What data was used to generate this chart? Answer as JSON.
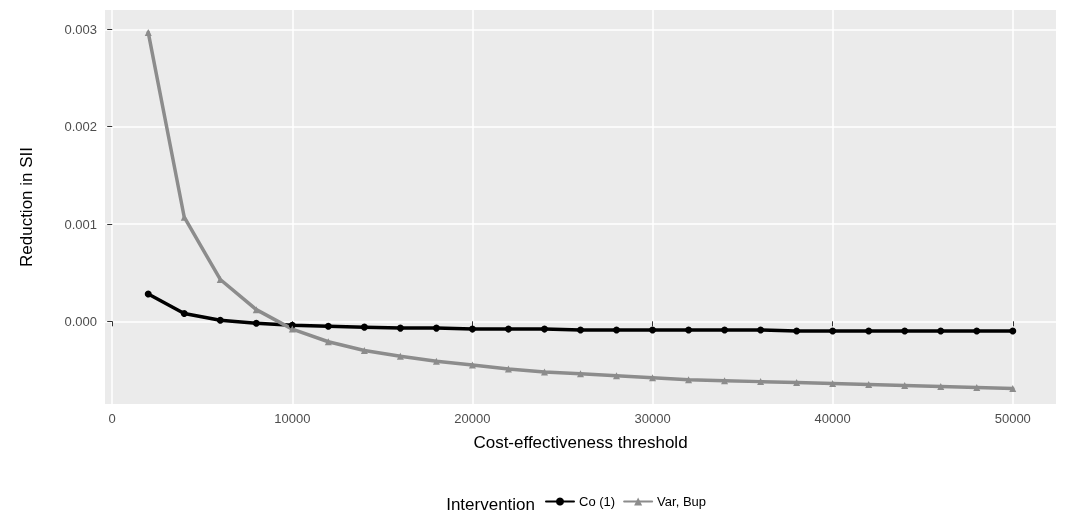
{
  "chart_data": {
    "type": "line",
    "xlabel": "Cost-effectiveness threshold",
    "ylabel": "Reduction in SII",
    "legend_title": "Intervention",
    "legend": "bottom",
    "grid": true,
    "x": [
      2000,
      4000,
      6000,
      8000,
      10000,
      12000,
      14000,
      16000,
      18000,
      20000,
      22000,
      24000,
      26000,
      28000,
      30000,
      32000,
      34000,
      36000,
      38000,
      40000,
      42000,
      44000,
      46000,
      48000,
      50000
    ],
    "xlim": [
      -400,
      52400
    ],
    "xticks": [
      0,
      10000,
      20000,
      30000,
      40000,
      50000
    ],
    "ylim": [
      -0.00085,
      0.0032
    ],
    "yticks": [
      {
        "value": 0,
        "label": "0.000"
      },
      {
        "value": 0.001,
        "label": "0.001"
      },
      {
        "value": 0.002,
        "label": "0.002"
      },
      {
        "value": 0.003,
        "label": "0.003"
      }
    ],
    "series": [
      {
        "name": "Co (1)",
        "color": "#000000",
        "marker": "circle",
        "values": [
          0.00028,
          8e-05,
          1e-05,
          -2e-05,
          -4e-05,
          -5e-05,
          -6e-05,
          -7e-05,
          -7e-05,
          -8e-05,
          -8e-05,
          -8e-05,
          -9e-05,
          -9e-05,
          -9e-05,
          -9e-05,
          -9e-05,
          -9e-05,
          -0.0001,
          -0.0001,
          -0.0001,
          -0.0001,
          -0.0001,
          -0.0001,
          -0.0001
        ]
      },
      {
        "name": "Var, Bup",
        "color": "#8c8c8c",
        "marker": "triangle",
        "values": [
          0.00297,
          0.00107,
          0.00043,
          0.00012,
          -8e-05,
          -0.00021,
          -0.0003,
          -0.00036,
          -0.00041,
          -0.00045,
          -0.00049,
          -0.00052,
          -0.00054,
          -0.00056,
          -0.00058,
          -0.0006,
          -0.00061,
          -0.00062,
          -0.00063,
          -0.00064,
          -0.00065,
          -0.00066,
          -0.00067,
          -0.00068,
          -0.00069
        ]
      }
    ]
  }
}
